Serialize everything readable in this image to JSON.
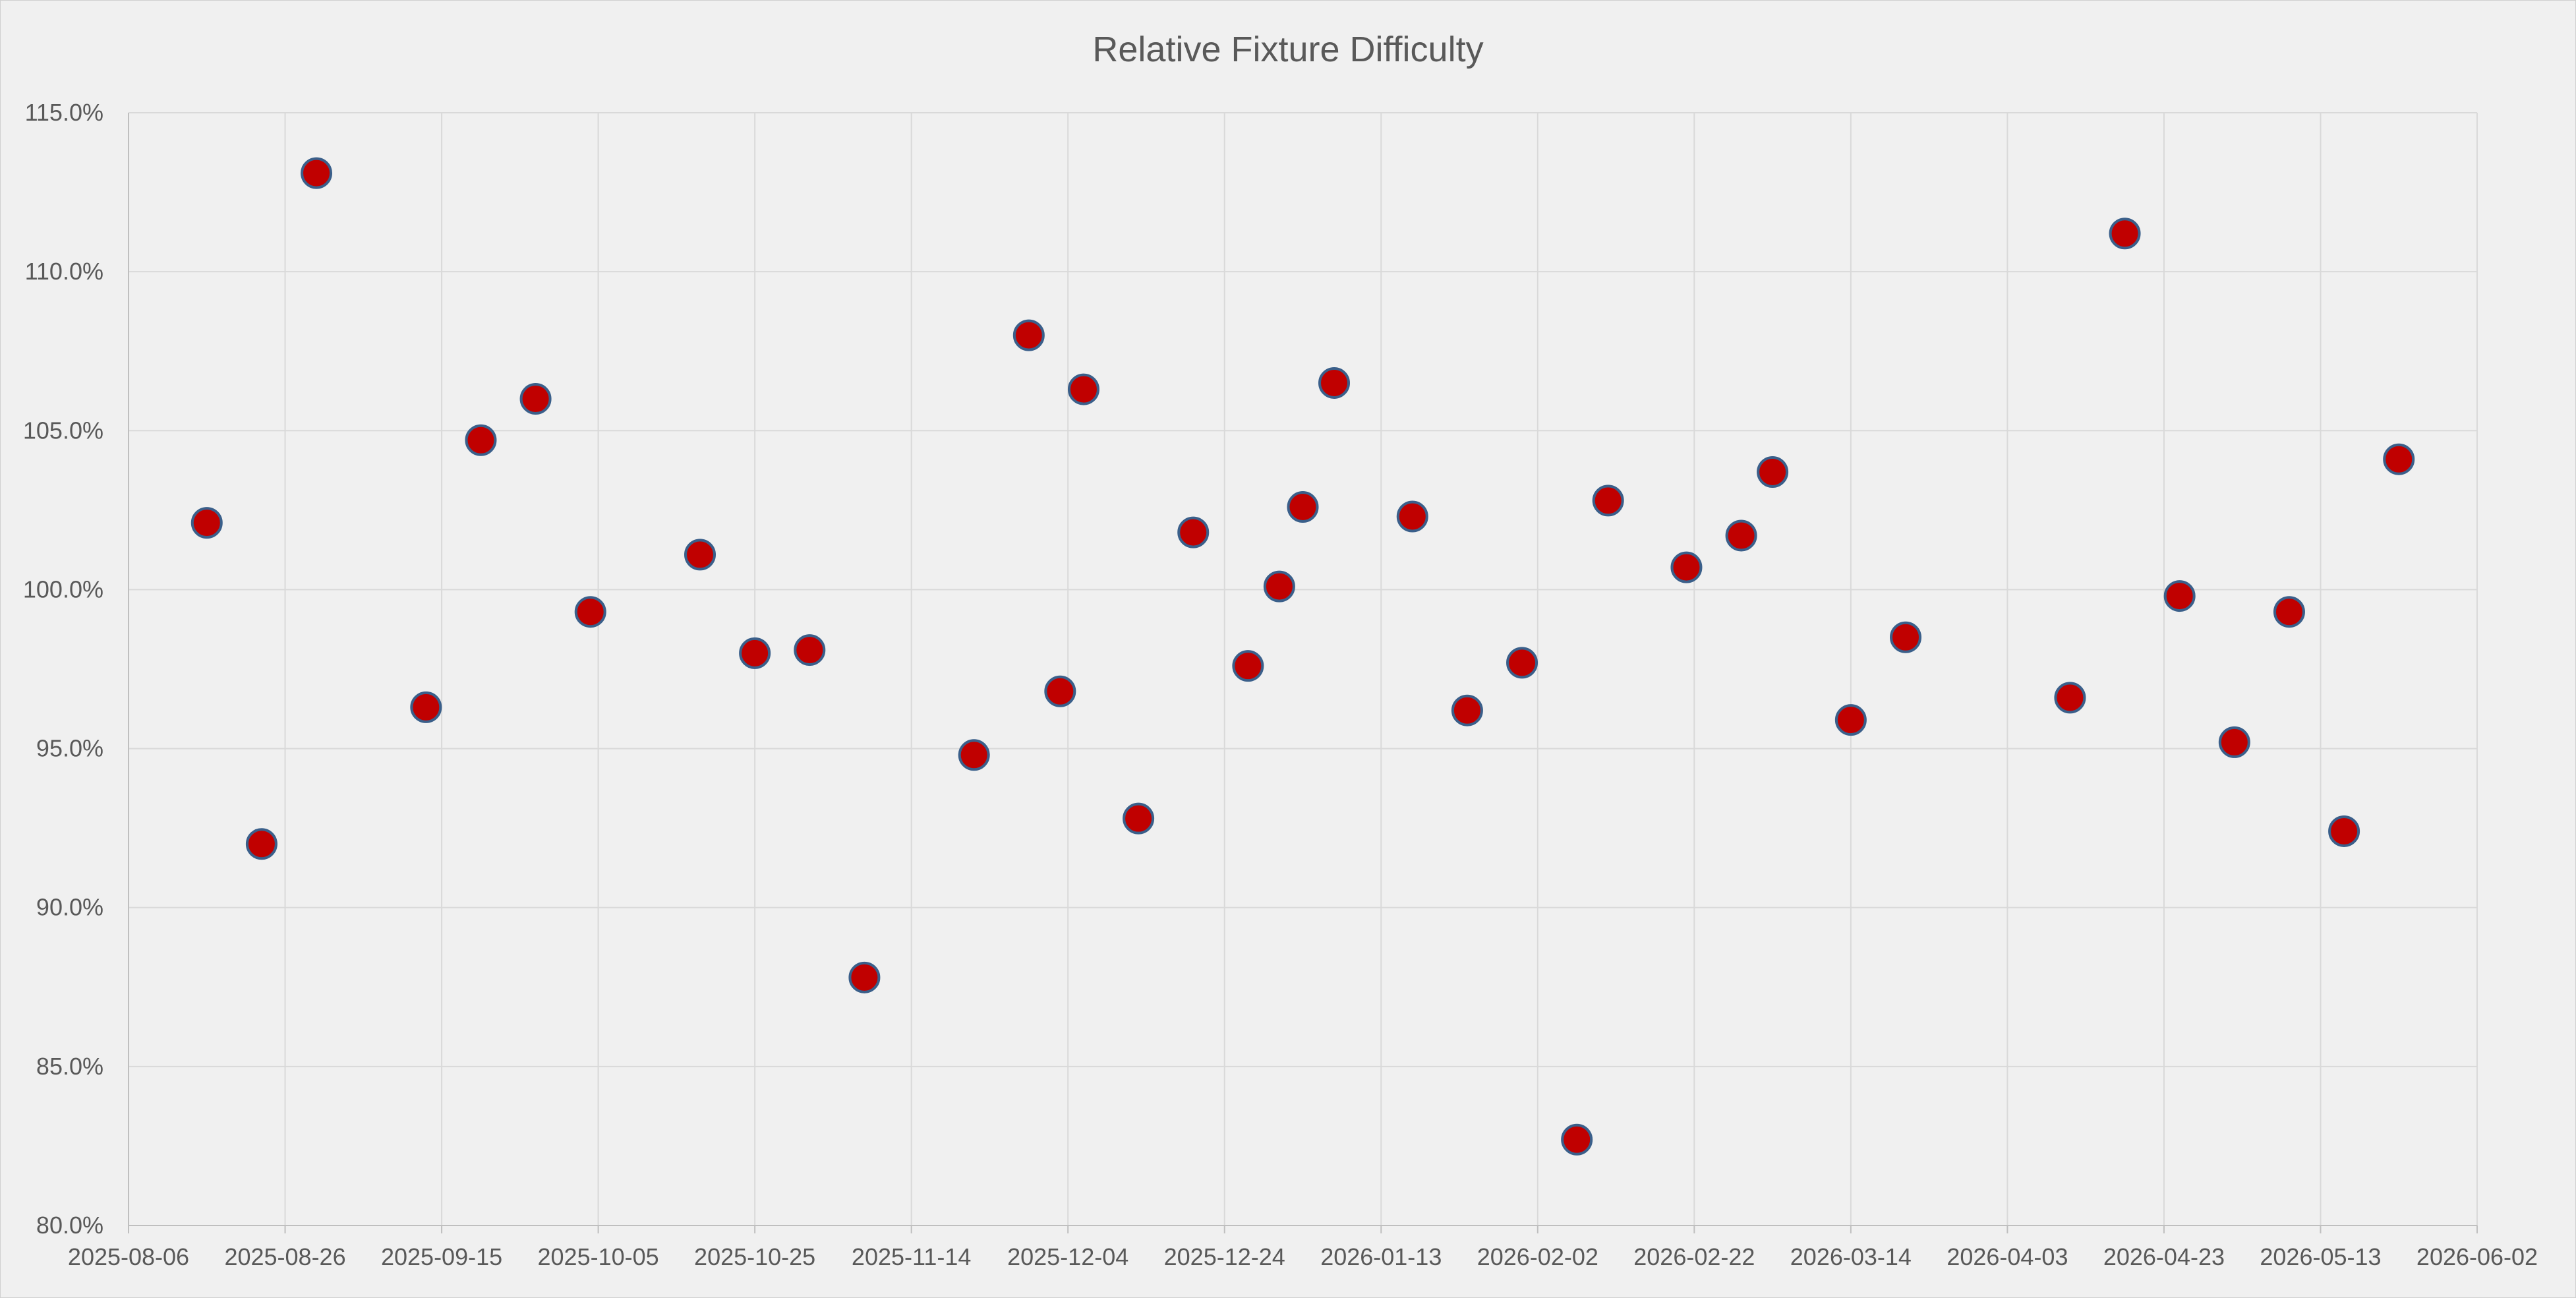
{
  "chart_data": {
    "type": "scatter",
    "title": "Relative Fixture Difficulty",
    "xlabel": "",
    "ylabel": "",
    "x_axis_type": "date",
    "xlim": [
      "2025-08-06",
      "2026-06-02"
    ],
    "x_tick_labels": [
      "2025-08-06",
      "2025-08-26",
      "2025-09-15",
      "2025-10-05",
      "2025-10-25",
      "2025-11-14",
      "2025-12-04",
      "2025-12-24",
      "2026-01-13",
      "2026-02-02",
      "2026-02-22",
      "2026-03-14",
      "2026-04-03",
      "2026-04-23",
      "2026-05-13",
      "2026-06-02"
    ],
    "ylim": [
      0.8,
      1.15
    ],
    "y_tick_values": [
      0.8,
      0.85,
      0.9,
      0.95,
      1.0,
      1.05,
      1.1,
      1.15
    ],
    "y_tick_labels": [
      "80.0%",
      "85.0%",
      "90.0%",
      "95.0%",
      "100.0%",
      "105.0%",
      "110.0%",
      "115.0%"
    ],
    "grid": true,
    "legend": "none",
    "marker_color": "#c00000",
    "marker_edge_color": "#3a5f8a",
    "grid_color": "#d9d9d9",
    "series": [
      {
        "points": [
          {
            "x": "2025-08-16",
            "y": 1.021
          },
          {
            "x": "2025-08-23",
            "y": 0.92
          },
          {
            "x": "2025-08-30",
            "y": 1.131
          },
          {
            "x": "2025-09-13",
            "y": 0.963
          },
          {
            "x": "2025-09-20",
            "y": 1.047
          },
          {
            "x": "2025-09-27",
            "y": 1.06
          },
          {
            "x": "2025-10-04",
            "y": 0.993
          },
          {
            "x": "2025-10-18",
            "y": 1.011
          },
          {
            "x": "2025-10-25",
            "y": 0.98
          },
          {
            "x": "2025-11-01",
            "y": 0.981
          },
          {
            "x": "2025-11-08",
            "y": 0.878
          },
          {
            "x": "2025-11-22",
            "y": 0.948
          },
          {
            "x": "2025-11-29",
            "y": 1.08
          },
          {
            "x": "2025-12-03",
            "y": 0.968
          },
          {
            "x": "2025-12-06",
            "y": 1.063
          },
          {
            "x": "2025-12-13",
            "y": 0.928
          },
          {
            "x": "2025-12-20",
            "y": 1.018
          },
          {
            "x": "2025-12-27",
            "y": 0.976
          },
          {
            "x": "2025-12-31",
            "y": 1.001
          },
          {
            "x": "2026-01-03",
            "y": 1.026
          },
          {
            "x": "2026-01-07",
            "y": 1.065
          },
          {
            "x": "2026-01-17",
            "y": 1.023
          },
          {
            "x": "2026-01-24",
            "y": 0.962
          },
          {
            "x": "2026-01-31",
            "y": 0.977
          },
          {
            "x": "2026-02-07",
            "y": 0.827
          },
          {
            "x": "2026-02-11",
            "y": 1.028
          },
          {
            "x": "2026-02-21",
            "y": 1.007
          },
          {
            "x": "2026-02-28",
            "y": 1.017
          },
          {
            "x": "2026-03-04",
            "y": 1.037
          },
          {
            "x": "2026-03-14",
            "y": 0.959
          },
          {
            "x": "2026-03-21",
            "y": 0.985
          },
          {
            "x": "2026-04-11",
            "y": 0.966
          },
          {
            "x": "2026-04-18",
            "y": 1.112
          },
          {
            "x": "2026-04-25",
            "y": 0.998
          },
          {
            "x": "2026-05-02",
            "y": 0.952
          },
          {
            "x": "2026-05-09",
            "y": 0.993
          },
          {
            "x": "2026-05-16",
            "y": 0.924
          },
          {
            "x": "2026-05-23",
            "y": 1.041
          }
        ]
      }
    ]
  }
}
